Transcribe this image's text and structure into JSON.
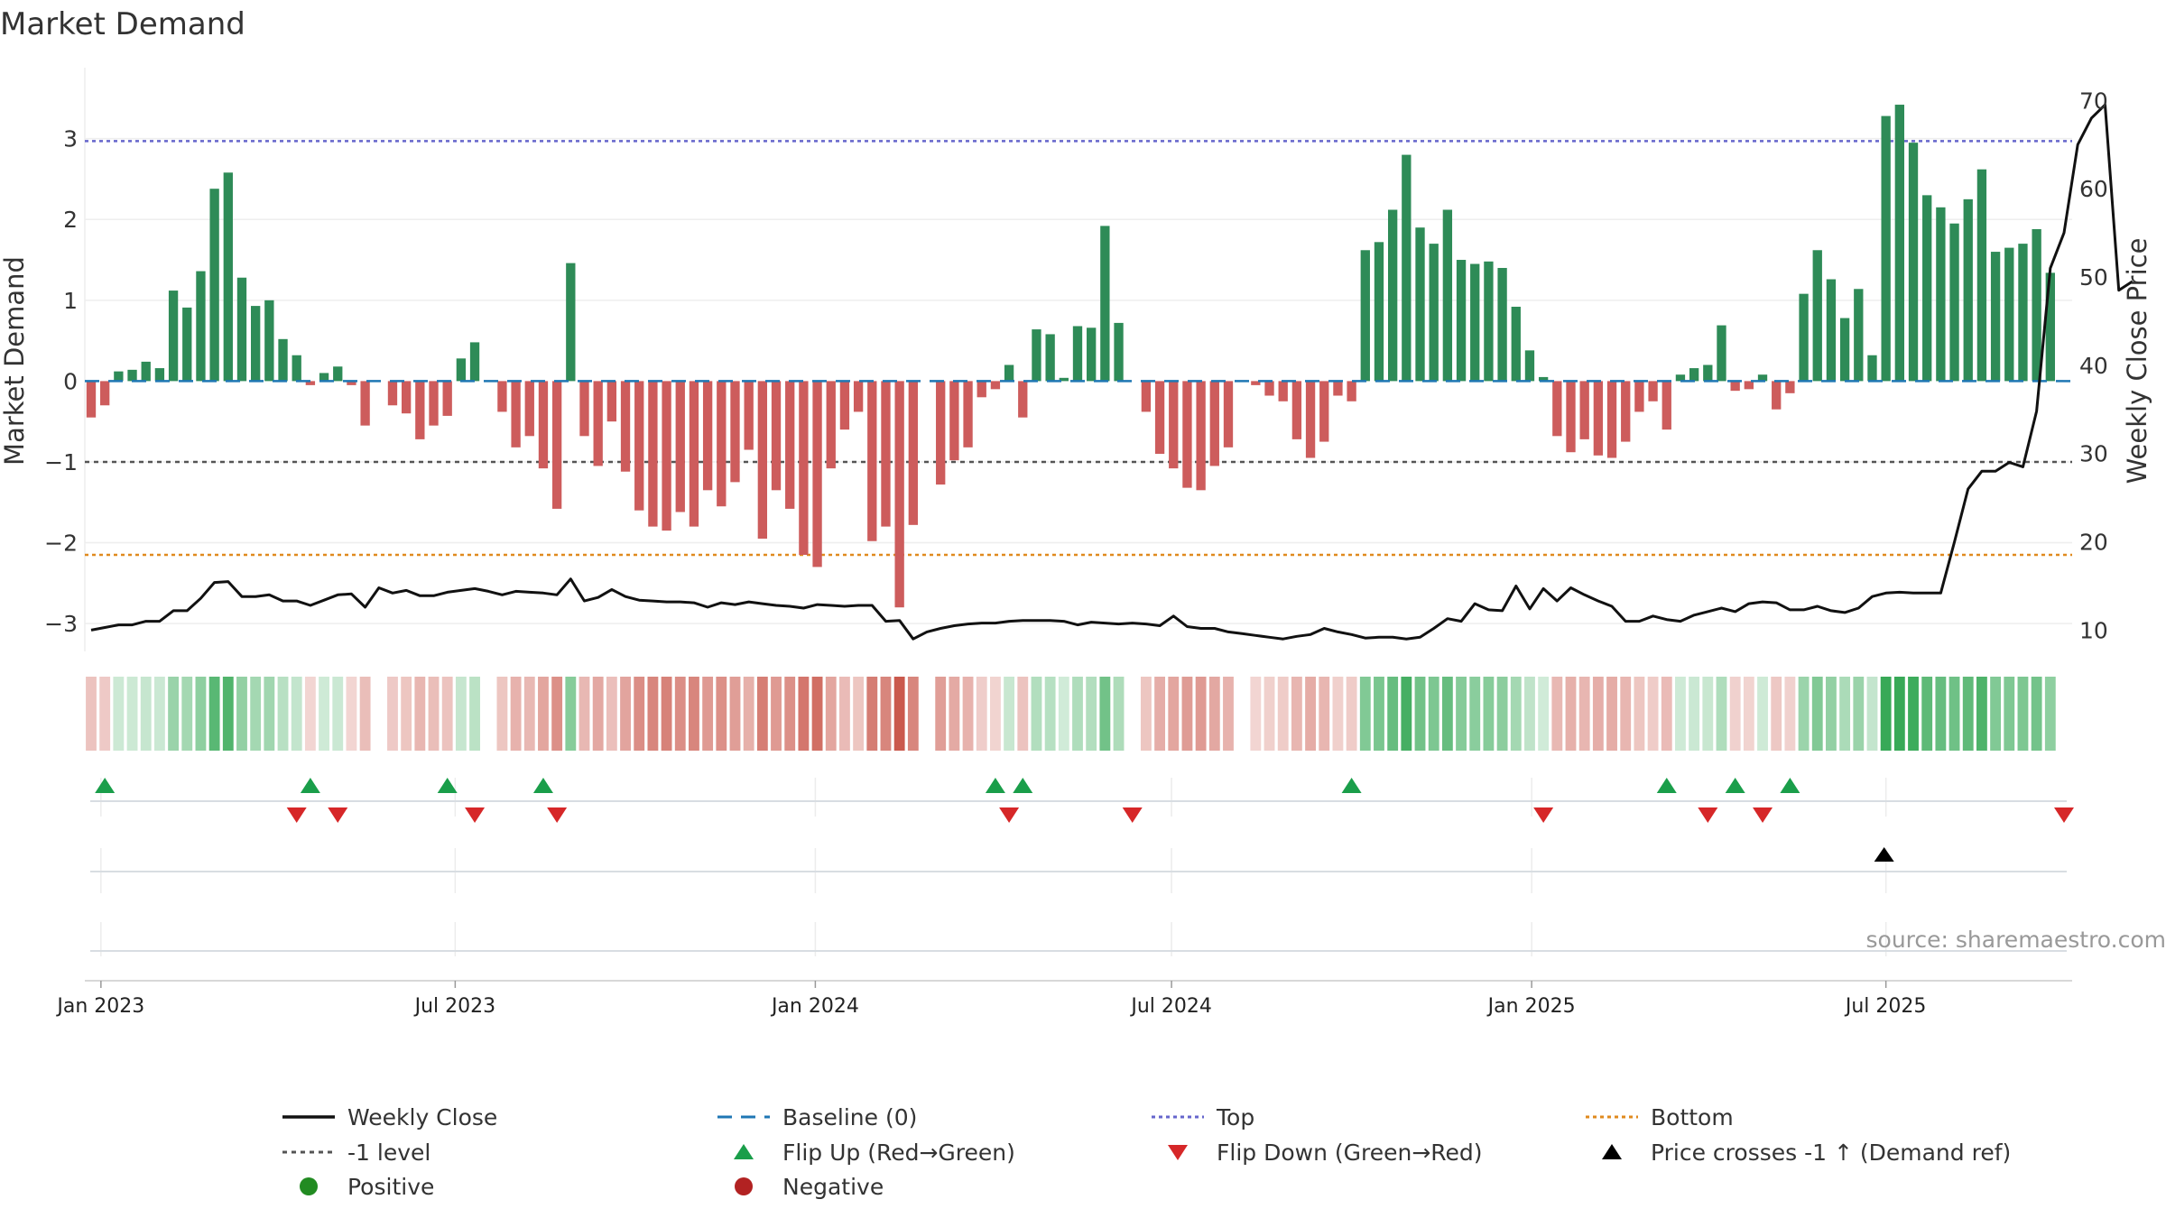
{
  "chart_data": {
    "type": "bar",
    "title": "Market Demand",
    "ylabel": "Market Demand",
    "y2label": "Weekly Close Price",
    "ylim": [
      -3.3,
      3.8
    ],
    "y2lim": [
      8,
      73
    ],
    "yticks": [
      -3,
      -2,
      -1,
      0,
      1,
      2,
      3
    ],
    "y2ticks": [
      10,
      20,
      30,
      40,
      50,
      60,
      70
    ],
    "xticks": [
      "Jan 2023",
      "Jul 2023",
      "Jan 2024",
      "Jul 2024",
      "Jan 2025",
      "Jul 2025"
    ],
    "reference_lines": {
      "top": 2.97,
      "bottom": -2.15,
      "minus_one": -1,
      "baseline": 0
    },
    "colors": {
      "positive": "#2e8b57",
      "negative": "#cd5c5c",
      "price": "#111111",
      "top": "#6666cc",
      "bottom": "#e08a1e",
      "minus_one": "#555555",
      "baseline": "#1f77b4",
      "flip_up": "#1a9e4a",
      "flip_down": "#d62728",
      "cross": "#000000",
      "legend_positive": "#228b22",
      "legend_negative": "#b22222"
    },
    "weeks": 145,
    "demand": [
      -0.45,
      -0.3,
      0.12,
      0.14,
      0.24,
      0.16,
      1.12,
      0.91,
      1.36,
      2.38,
      2.58,
      1.28,
      0.93,
      1.0,
      0.52,
      0.32,
      -0.05,
      0.1,
      0.18,
      -0.05,
      -0.55,
      0,
      -0.3,
      -0.4,
      -0.72,
      -0.55,
      -0.43,
      0.28,
      0.48,
      0,
      -0.38,
      -0.82,
      -0.68,
      -1.08,
      -1.58,
      1.46,
      -0.68,
      -1.05,
      -0.5,
      -1.12,
      -1.6,
      -1.8,
      -1.85,
      -1.62,
      -1.8,
      -1.35,
      -1.55,
      -1.25,
      -0.85,
      -1.95,
      -1.35,
      -1.58,
      -2.15,
      -2.3,
      -1.08,
      -0.6,
      -0.38,
      -1.98,
      -1.8,
      -2.8,
      -1.78,
      0,
      -1.28,
      -0.98,
      -0.82,
      -0.2,
      -0.1,
      0.2,
      -0.45,
      0.64,
      0.58,
      0.04,
      0.68,
      0.66,
      1.92,
      0.72,
      0,
      -0.38,
      -0.9,
      -1.08,
      -1.32,
      -1.35,
      -1.05,
      -0.82,
      0,
      -0.05,
      -0.18,
      -0.25,
      -0.72,
      -0.95,
      -0.75,
      -0.18,
      -0.25,
      1.62,
      1.72,
      2.12,
      2.8,
      1.9,
      1.7,
      2.12,
      1.5,
      1.45,
      1.48,
      1.4,
      0.92,
      0.38,
      0.05,
      -0.68,
      -0.88,
      -0.72,
      -0.92,
      -0.95,
      -0.75,
      -0.38,
      -0.25,
      -0.6,
      0.08,
      0.16,
      0.2,
      0.69,
      -0.12,
      -0.1,
      0.08,
      -0.35,
      -0.15,
      1.08,
      1.62,
      1.26,
      0.78,
      1.14,
      0.32,
      3.28,
      3.42,
      2.95,
      2.3,
      2.15,
      1.95,
      2.25,
      2.62,
      1.6,
      1.65,
      1.7,
      1.88,
      1.34,
      0
    ],
    "weekly_close": [
      10.0,
      10.3,
      10.6,
      10.6,
      11.0,
      11.0,
      12.2,
      12.2,
      13.6,
      15.4,
      15.5,
      13.8,
      13.8,
      14.0,
      13.3,
      13.3,
      12.8,
      13.4,
      14.0,
      14.1,
      12.6,
      14.8,
      14.2,
      14.5,
      13.9,
      13.9,
      14.3,
      14.5,
      14.7,
      14.4,
      14.0,
      14.4,
      14.3,
      14.2,
      14.0,
      15.8,
      13.3,
      13.7,
      14.6,
      13.8,
      13.4,
      13.3,
      13.2,
      13.2,
      13.1,
      12.6,
      13.1,
      12.9,
      13.2,
      13.0,
      12.8,
      12.7,
      12.5,
      12.9,
      12.8,
      12.7,
      12.8,
      12.8,
      11.0,
      11.1,
      9.0,
      9.8,
      10.2,
      10.5,
      10.7,
      10.8,
      10.8,
      11.0,
      11.1,
      11.1,
      11.1,
      11.0,
      10.6,
      10.9,
      10.8,
      10.7,
      10.8,
      10.7,
      10.5,
      11.6,
      10.4,
      10.2,
      10.2,
      9.8,
      9.6,
      9.4,
      9.2,
      9.0,
      9.3,
      9.5,
      10.2,
      9.8,
      9.5,
      9.1,
      9.2,
      9.2,
      9.0,
      9.2,
      10.2,
      11.3,
      11.0,
      13.0,
      12.3,
      12.2,
      15.0,
      12.4,
      14.7,
      13.3,
      14.8,
      14.0,
      13.3,
      12.7,
      11.0,
      11.0,
      11.6,
      11.2,
      11.0,
      11.7,
      12.1,
      12.5,
      12.1,
      13.0,
      13.2,
      13.1,
      12.3,
      12.3,
      12.7,
      12.2,
      12.0,
      12.5,
      13.8,
      14.2,
      14.3,
      14.2,
      14.2,
      14.2,
      20.0,
      26.0,
      28.0,
      28.0,
      29.0,
      28.5,
      34.8,
      51.0,
      55.0,
      65.0,
      68.0,
      69.5,
      48.5,
      49.5
    ],
    "flip_up": [
      "Jan 2023",
      "May 2023",
      "Jul 2023",
      "Aug 2023",
      "Apr 2024",
      "Apr 2024",
      "Oct 2024",
      "Mar 2025",
      "Apr 2025",
      "May 2025"
    ],
    "flip_down": [
      "May 2023",
      "May 2023",
      "Jul 2023",
      "Aug 2023",
      "Apr 2024",
      "Jun 2024",
      "Jan 2025",
      "Apr 2025",
      "May 2025",
      "Sep 2025"
    ],
    "price_crosses": [
      "Jul 2025"
    ],
    "legend": {
      "weekly_close": "Weekly Close",
      "baseline": "Baseline (0)",
      "top": "Top",
      "bottom": "Bottom",
      "minus_one": "-1 level",
      "flip_up": "Flip Up (Red→Green)",
      "flip_down": "Flip Down (Green→Red)",
      "cross": "Price crosses -1 ↑ (Demand ref)",
      "positive": "Positive",
      "negative": "Negative"
    },
    "source": "source: sharemaestro.com"
  }
}
